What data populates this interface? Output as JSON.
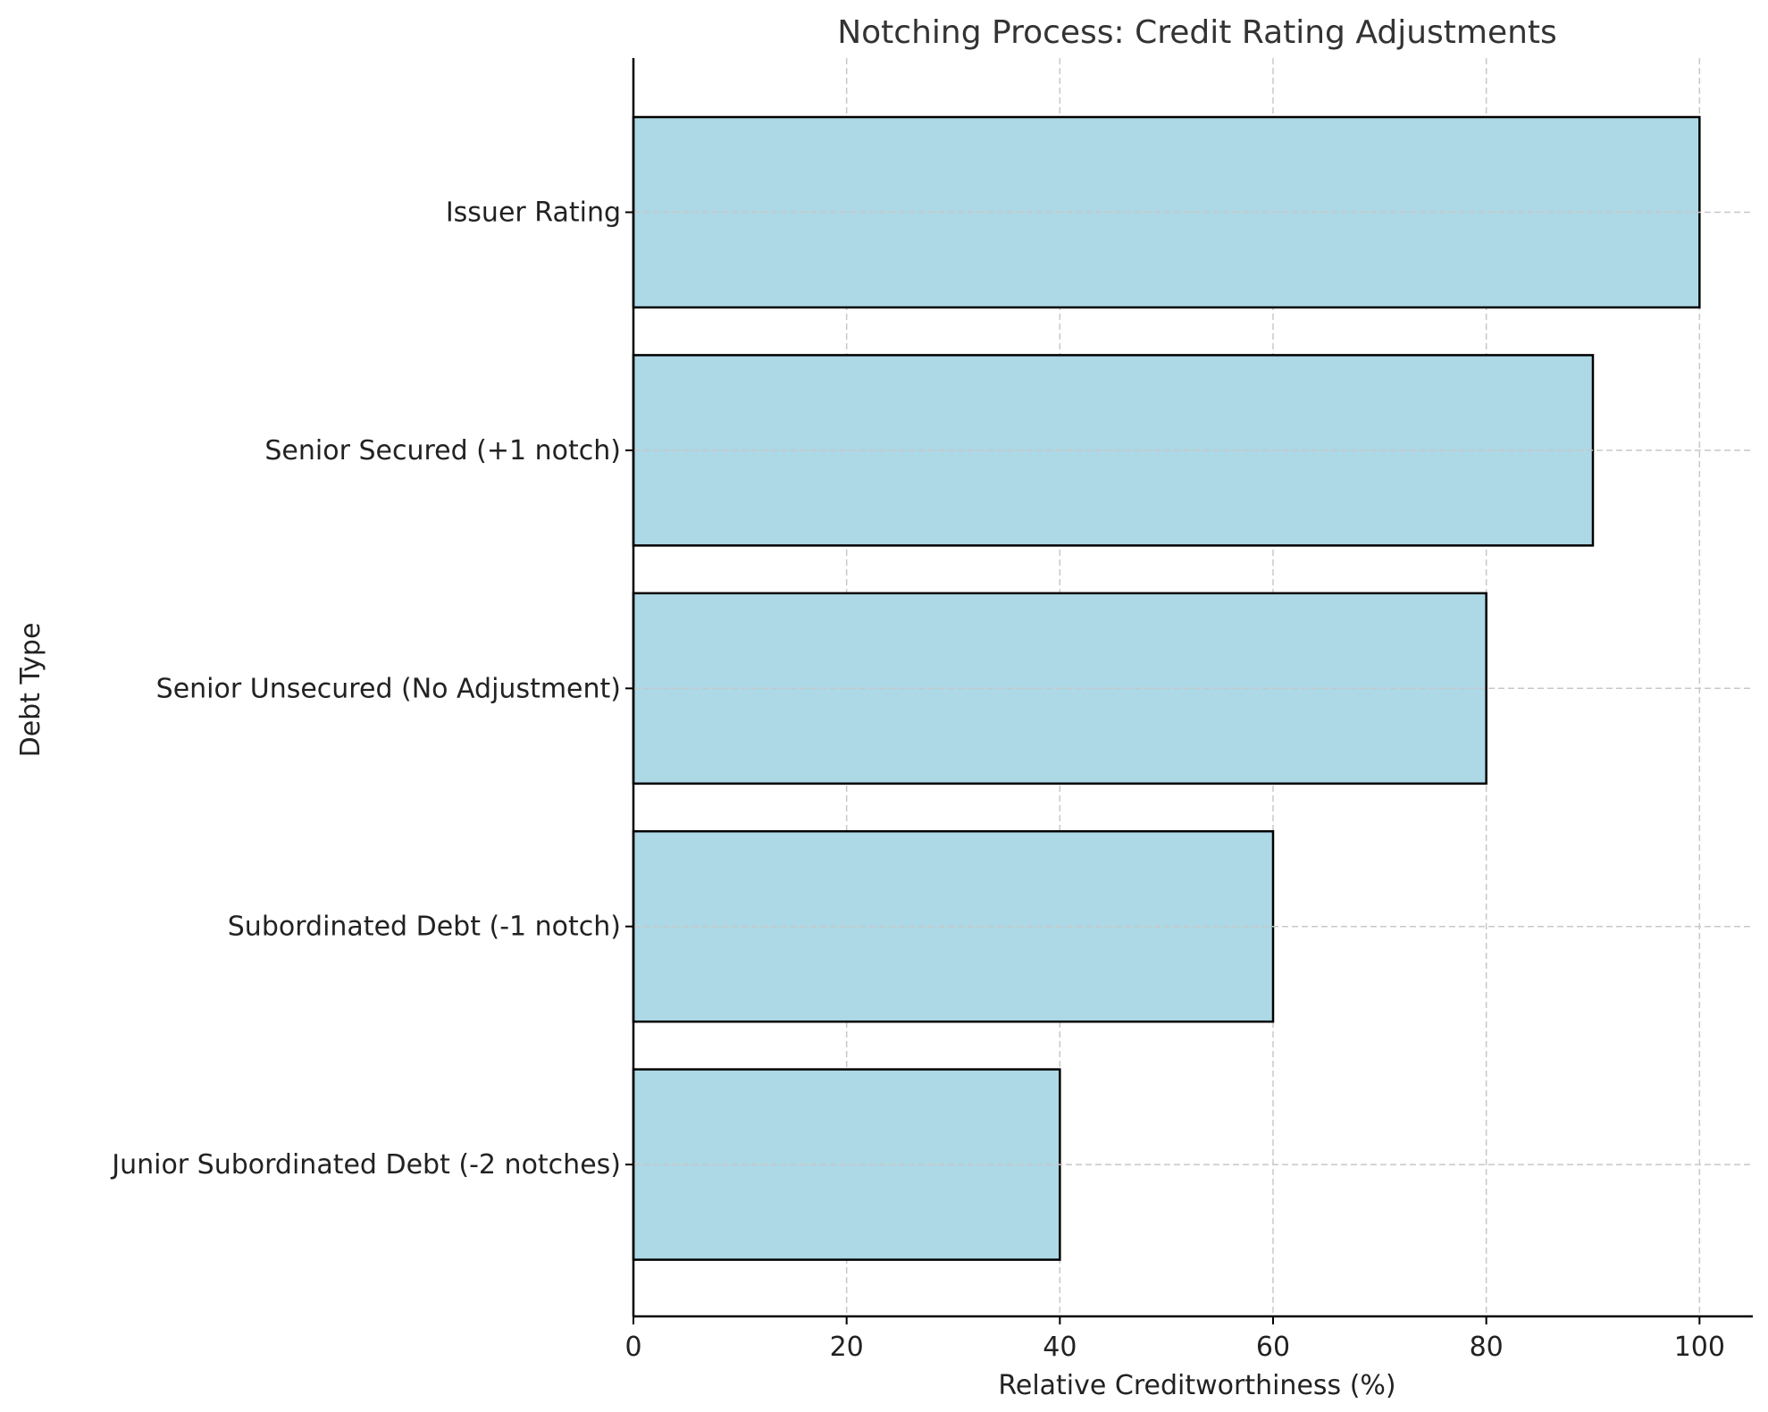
{
  "chart_data": {
    "type": "bar",
    "orientation": "horizontal",
    "title": "Notching Process: Credit Rating Adjustments",
    "xlabel": "Relative Creditworthiness (%)",
    "ylabel": "Debt Type",
    "categories": [
      "Issuer Rating",
      "Senior Secured (+1 notch)",
      "Senior Unsecured (No Adjustment)",
      "Subordinated Debt (-1 notch)",
      "Junior Subordinated Debt (-2 notches)"
    ],
    "values": [
      100,
      90,
      80,
      60,
      40
    ],
    "xlim": [
      0,
      105
    ],
    "xticks": [
      0,
      20,
      40,
      60,
      80,
      100
    ],
    "grid": true,
    "legend": "none",
    "bar_color": "#add8e6",
    "bar_edge_color": "#000000"
  }
}
